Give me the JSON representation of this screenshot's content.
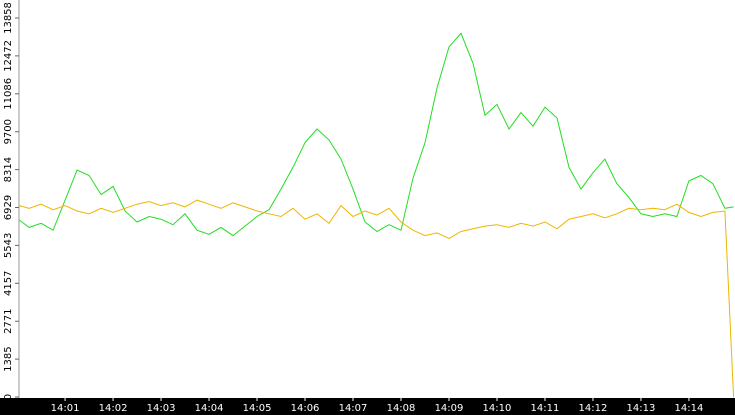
{
  "chart_data": {
    "type": "line",
    "x": [
      0.05,
      0.25,
      0.5,
      0.75,
      1.0,
      1.25,
      1.5,
      1.75,
      2.0,
      2.25,
      2.5,
      2.75,
      3.0,
      3.25,
      3.5,
      3.75,
      4.0,
      4.25,
      4.5,
      4.75,
      5.0,
      5.25,
      5.5,
      5.75,
      6.0,
      6.25,
      6.5,
      6.75,
      7.0,
      7.25,
      7.5,
      7.75,
      8.0,
      8.25,
      8.5,
      8.75,
      9.0,
      9.25,
      9.5,
      9.75,
      10.0,
      10.25,
      10.5,
      10.75,
      11.0,
      11.25,
      11.5,
      11.75,
      12.0,
      12.25,
      12.5,
      12.75,
      13.0,
      13.25,
      13.5,
      13.75,
      14.0,
      14.25,
      14.5,
      14.75,
      14.93
    ],
    "series": [
      {
        "color": "#22dd22",
        "values": [
          6470,
          6200,
          6350,
          6100,
          7200,
          8300,
          8100,
          7400,
          7700,
          6800,
          6400,
          6600,
          6500,
          6300,
          6700,
          6100,
          5950,
          6200,
          5900,
          6250,
          6600,
          6850,
          7600,
          8400,
          9300,
          9800,
          9400,
          8700,
          7600,
          6400,
          6050,
          6300,
          6100,
          8000,
          9300,
          11300,
          12800,
          13300,
          12200,
          10300,
          10700,
          9800,
          10400,
          9900,
          10600,
          10200,
          8400,
          7600,
          8200,
          8700,
          7800,
          7300,
          6700,
          6600,
          6700,
          6600,
          7900,
          8100,
          7800,
          6900,
          6950
        ]
      },
      {
        "color": "#f0b400",
        "values": [
          7000,
          6900,
          7050,
          6850,
          7000,
          6800,
          6700,
          6900,
          6750,
          6900,
          7050,
          7150,
          7000,
          7100,
          6950,
          7200,
          7050,
          6900,
          7100,
          6950,
          6800,
          6700,
          6600,
          6900,
          6500,
          6700,
          6350,
          7000,
          6600,
          6800,
          6650,
          6900,
          6400,
          6100,
          5900,
          6000,
          5800,
          6050,
          6150,
          6250,
          6300,
          6200,
          6350,
          6250,
          6400,
          6150,
          6500,
          6600,
          6700,
          6550,
          6700,
          6900,
          6850,
          6900,
          6850,
          7050,
          6750,
          6600,
          6750,
          6800,
          0
        ]
      }
    ],
    "xlim": [
      0.04,
      14.96
    ],
    "xticks": [
      {
        "value": 1,
        "label": "14:01"
      },
      {
        "value": 2,
        "label": "14:02"
      },
      {
        "value": 3,
        "label": "14:03"
      },
      {
        "value": 4,
        "label": "14:04"
      },
      {
        "value": 5,
        "label": "14:05"
      },
      {
        "value": 6,
        "label": "14:06"
      },
      {
        "value": 7,
        "label": "14:07"
      },
      {
        "value": 8,
        "label": "14:08"
      },
      {
        "value": 9,
        "label": "14:09"
      },
      {
        "value": 10,
        "label": "14:10"
      },
      {
        "value": 11,
        "label": "14:11"
      },
      {
        "value": 12,
        "label": "14:12"
      },
      {
        "value": 13,
        "label": "14:13"
      },
      {
        "value": 14,
        "label": "14:14"
      }
    ],
    "ylim": [
      0,
      14516
    ],
    "yticks": [
      0,
      1385,
      2771,
      4157,
      5543,
      6929,
      8314,
      9700,
      11086,
      12472,
      13858
    ]
  }
}
